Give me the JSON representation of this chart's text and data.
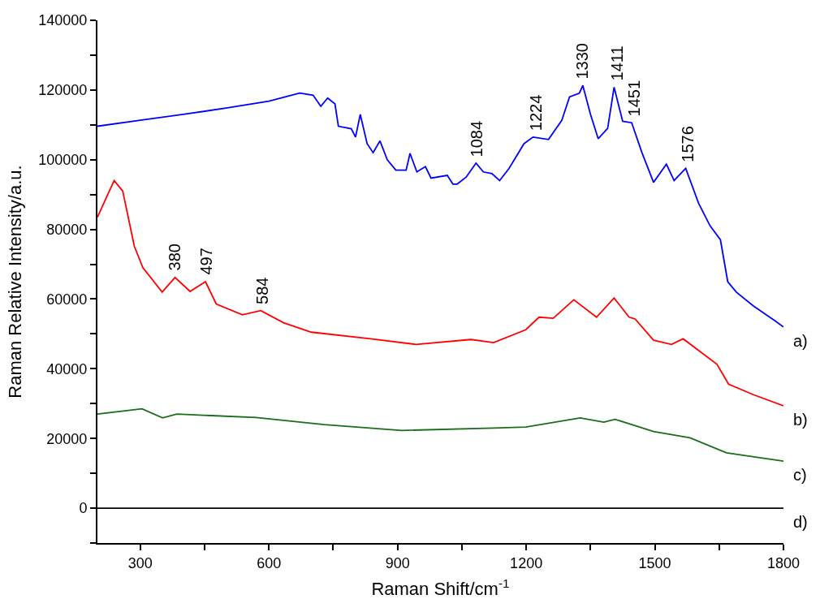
{
  "chart_data": {
    "type": "line",
    "xlabel": "Raman Shift/cm$^{-1}$",
    "ylabel": "Raman Relative Intensity/a.u.",
    "xlim": [
      200,
      1800
    ],
    "xticks": [
      300,
      {
        "value": 450,
        "label": null
      },
      600,
      {
        "value": 750,
        "label": null
      },
      900,
      {
        "value": 1050,
        "label": null
      },
      1200,
      {
        "value": 1350,
        "label": null
      },
      1500,
      {
        "value": 1650,
        "label": null
      },
      1800
    ],
    "ylim": [
      -10000,
      140000
    ],
    "yticks": [
      {
        "value": -10000,
        "label": null
      },
      0,
      {
        "value": 10000,
        "label": null
      },
      20000,
      {
        "value": 30000,
        "label": null
      },
      40000,
      {
        "value": 50000,
        "label": null
      },
      60000,
      {
        "value": 70000,
        "label": null
      },
      80000,
      {
        "value": 90000,
        "label": null
      },
      100000,
      {
        "value": 110000,
        "label": null
      },
      120000,
      {
        "value": 130000,
        "label": null
      },
      140000
    ],
    "marker": "none",
    "line_style": "solid",
    "series": [
      {
        "name": "a)",
        "color": "#0000ff",
        "x": [
          200,
          300,
          400,
          500,
          600,
          672,
          703,
          721,
          737,
          754,
          762,
          792,
          802,
          813,
          829,
          843,
          859,
          876,
          896,
          920,
          929,
          945,
          965,
          978,
          1016,
          1029,
          1039,
          1060,
          1083,
          1100,
          1120,
          1138,
          1160,
          1195,
          1216,
          1252,
          1283,
          1301,
          1324,
          1332,
          1350,
          1368,
          1390,
          1405,
          1425,
          1446,
          1470,
          1497,
          1527,
          1545,
          1572,
          1602,
          1629,
          1653,
          1670,
          1690,
          1730,
          1779,
          1800
        ],
        "values": [
          109600,
          111300,
          113000,
          114800,
          116800,
          119100,
          118500,
          115300,
          117700,
          116000,
          109600,
          108900,
          106500,
          113000,
          104600,
          102000,
          105400,
          100000,
          97000,
          97000,
          101800,
          96500,
          98000,
          94700,
          95500,
          93000,
          93000,
          95000,
          99000,
          96500,
          96000,
          94000,
          97500,
          104600,
          106500,
          105800,
          111300,
          118000,
          119100,
          121300,
          113000,
          106000,
          109000,
          120800,
          111000,
          110600,
          102000,
          93500,
          98700,
          94000,
          97500,
          87500,
          81000,
          77000,
          65000,
          62000,
          58000,
          53900,
          52000
        ]
      },
      {
        "name": "b)",
        "color": "#ff0000",
        "x": [
          200,
          239,
          259,
          286,
          306,
          351,
          381,
          416,
          452,
          477,
          538,
          581,
          634,
          699,
          837,
          943,
          1071,
          1124,
          1199,
          1230,
          1263,
          1311,
          1364,
          1405,
          1440,
          1454,
          1497,
          1539,
          1566,
          1645,
          1672,
          1731,
          1800
        ],
        "values": [
          83500,
          94000,
          91000,
          75200,
          69000,
          62000,
          66200,
          62200,
          65000,
          58600,
          55500,
          56700,
          53200,
          50500,
          48600,
          47000,
          48400,
          47500,
          51200,
          54800,
          54500,
          59800,
          54800,
          60300,
          54800,
          54300,
          48200,
          47000,
          48600,
          41300,
          35600,
          32500,
          29400
        ]
      },
      {
        "name": "c)",
        "color": "#1a6e1a",
        "x": [
          200,
          304,
          352,
          385,
          570,
          729,
          910,
          1124,
          1199,
          1326,
          1381,
          1407,
          1497,
          1582,
          1667,
          1800
        ],
        "values": [
          27000,
          28500,
          25900,
          27000,
          26000,
          24000,
          22300,
          23000,
          23300,
          25900,
          24700,
          25500,
          22000,
          20200,
          15900,
          13500
        ]
      },
      {
        "name": "d)",
        "color": "#000000",
        "x": [
          200,
          1800
        ],
        "values": [
          0,
          0
        ]
      }
    ],
    "annotations": [
      {
        "text": "380",
        "x": 380,
        "y": 66200
      },
      {
        "text": "497",
        "x": 452,
        "y": 65000
      },
      {
        "text": "584",
        "x": 584,
        "y": 56700
      },
      {
        "text": "1084",
        "x": 1084,
        "y": 99000
      },
      {
        "text": "1224",
        "x": 1224,
        "y": 106500
      },
      {
        "text": "1330",
        "x": 1330,
        "y": 121300
      },
      {
        "text": "1411",
        "x": 1411,
        "y": 120800
      },
      {
        "text": "1451",
        "x": 1451,
        "y": 110600
      },
      {
        "text": "1576",
        "x": 1576,
        "y": 97500
      }
    ]
  }
}
